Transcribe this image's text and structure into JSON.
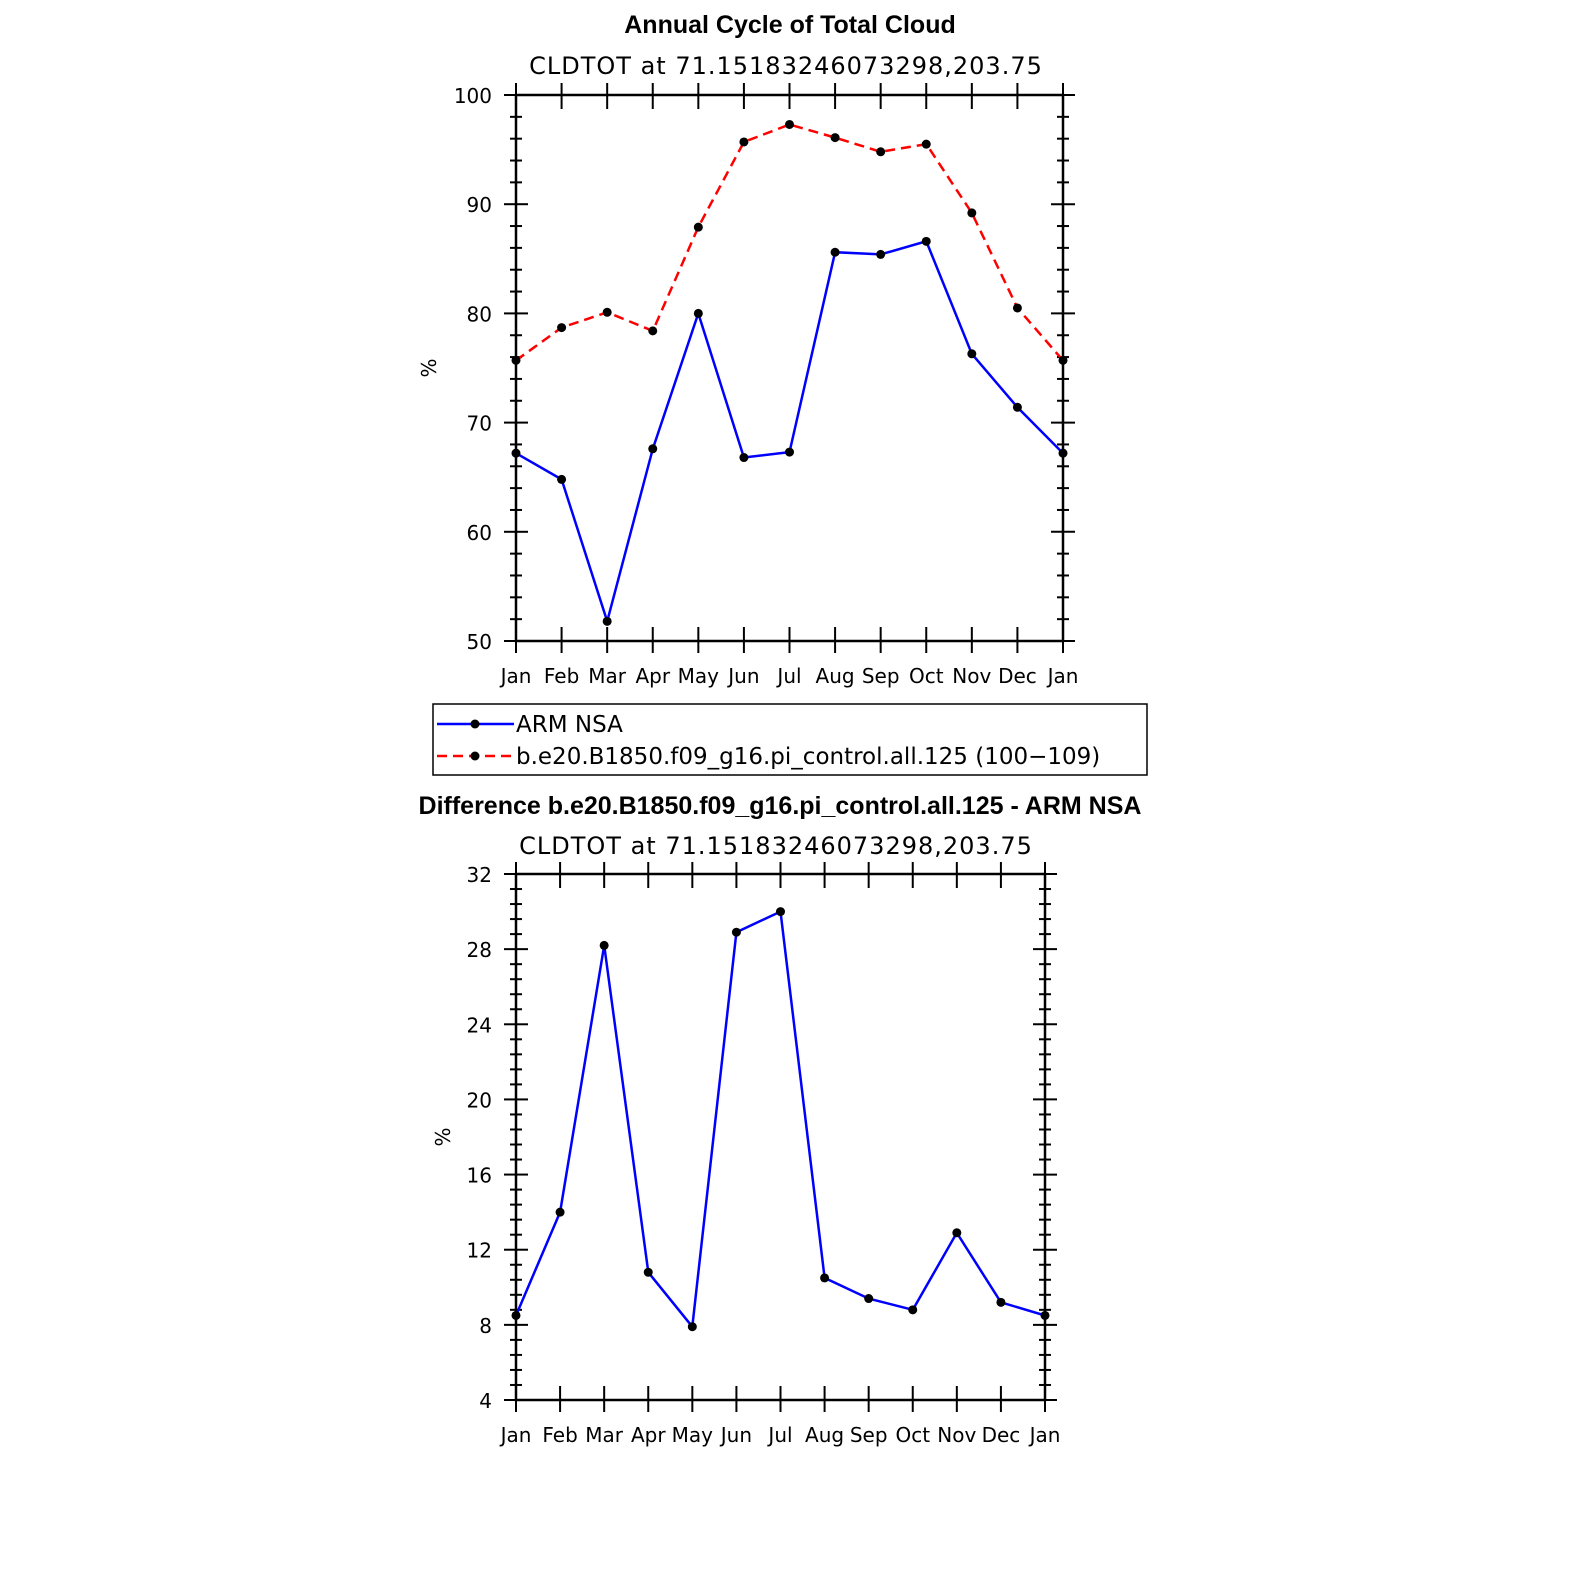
{
  "chart_data": [
    {
      "type": "line",
      "title": "Annual Cycle of Total Cloud",
      "subtitle": "CLDTOT at 71.15183246073298,203.75",
      "ylabel": "%",
      "xlabel": "",
      "categories": [
        "Jan",
        "Feb",
        "Mar",
        "Apr",
        "May",
        "Jun",
        "Jul",
        "Aug",
        "Sep",
        "Oct",
        "Nov",
        "Dec",
        "Jan"
      ],
      "ylim": [
        50,
        100
      ],
      "yticks": [
        50,
        60,
        70,
        80,
        90,
        100
      ],
      "series": [
        {
          "name": "ARM NSA",
          "color": "#0000ff",
          "dash": "solid",
          "values": [
            67.2,
            64.8,
            51.8,
            67.6,
            80.0,
            66.8,
            67.3,
            85.6,
            85.4,
            86.6,
            76.3,
            71.4,
            67.2
          ]
        },
        {
          "name": "b.e20.B1850.f09_g16.pi_control.all.125 (100−109)",
          "color": "#ff0000",
          "dash": "dashed",
          "values": [
            75.7,
            78.7,
            80.1,
            78.4,
            87.9,
            95.7,
            97.3,
            96.1,
            94.8,
            95.5,
            89.2,
            80.5,
            75.7
          ]
        }
      ],
      "legend": "below"
    },
    {
      "type": "line",
      "title": "Difference b.e20.B1850.f09_g16.pi_control.all.125 - ARM NSA",
      "subtitle": "CLDTOT at 71.15183246073298,203.75",
      "ylabel": "%",
      "xlabel": "",
      "categories": [
        "Jan",
        "Feb",
        "Mar",
        "Apr",
        "May",
        "Jun",
        "Jul",
        "Aug",
        "Sep",
        "Oct",
        "Nov",
        "Dec",
        "Jan"
      ],
      "ylim": [
        4,
        32
      ],
      "yticks": [
        4,
        8,
        12,
        16,
        20,
        24,
        28,
        32
      ],
      "series": [
        {
          "color": "#0000ff",
          "dash": "solid",
          "values": [
            8.5,
            14.0,
            28.2,
            10.8,
            7.9,
            28.9,
            30.0,
            10.5,
            9.4,
            8.8,
            12.9,
            9.2,
            8.5
          ]
        }
      ]
    }
  ]
}
